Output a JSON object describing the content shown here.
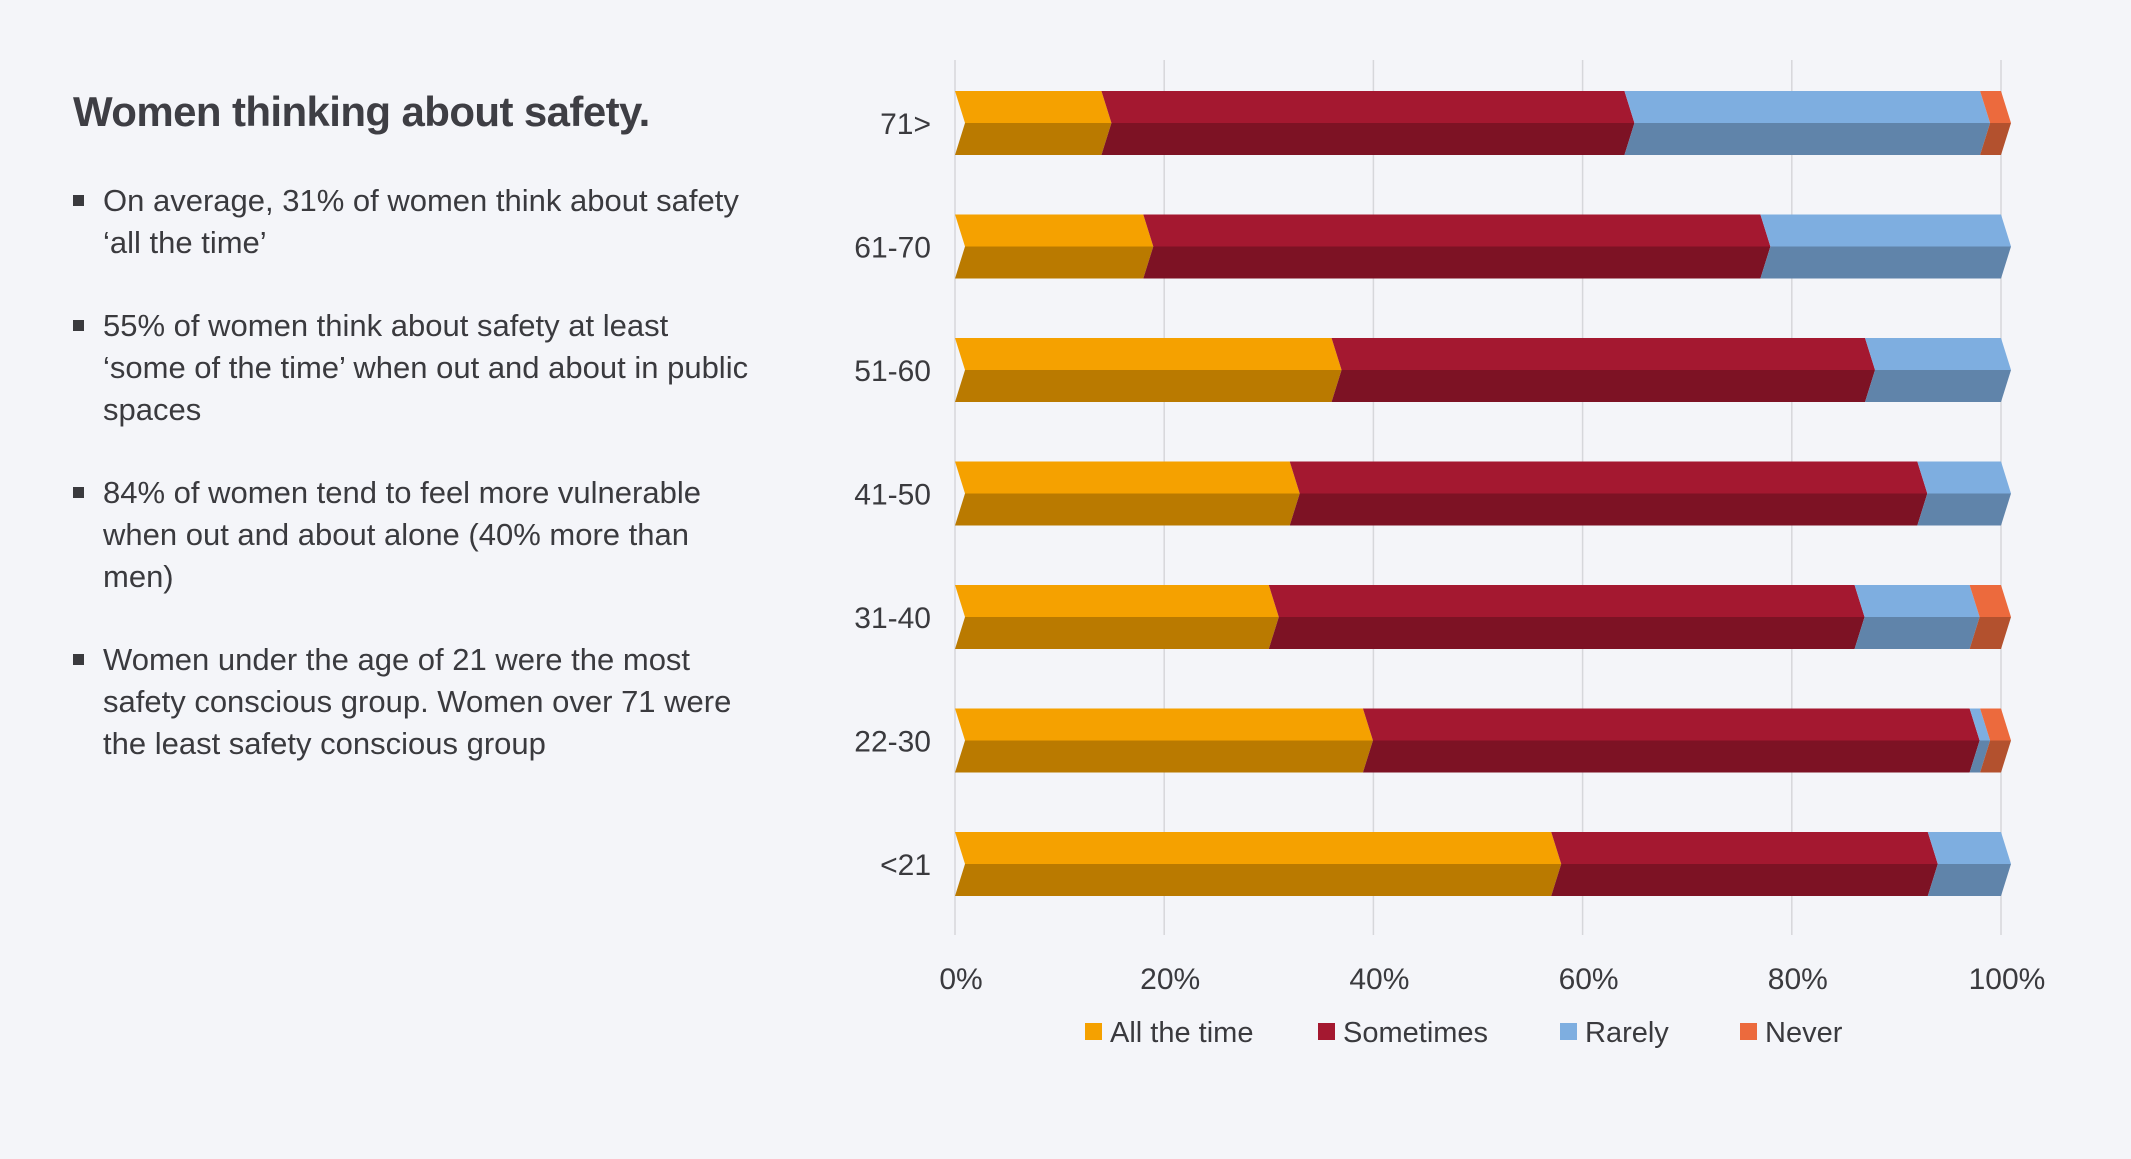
{
  "title": "Women thinking about safety.",
  "bullets": [
    "On average, 31% of women think about safety ‘all the time’",
    "55% of women think about safety at least ‘some of the time’ when out and about in public spaces",
    "84% of women tend to feel more vulnerable when out and about alone (40% more than men)",
    "Women under the age of 21 were the most safety conscious group. Women over 71 were the least safety conscious group"
  ],
  "chart_data": {
    "type": "bar",
    "orientation": "horizontal",
    "stacked": "percent",
    "style": "3d",
    "categories": [
      "71>",
      "61-70",
      "51-60",
      "41-50",
      "31-40",
      "22-30",
      "<21"
    ],
    "series": [
      {
        "name": "All the time",
        "color": "#f5a100",
        "values": [
          14,
          18,
          36,
          32,
          30,
          39,
          57
        ]
      },
      {
        "name": "Sometimes",
        "color": "#a41830",
        "values": [
          50,
          59,
          51,
          60,
          56,
          58,
          36
        ]
      },
      {
        "name": "Rarely",
        "color": "#7eaee0",
        "values": [
          34,
          23,
          13,
          8,
          11,
          1,
          7
        ]
      },
      {
        "name": "Never",
        "color": "#ec6a3d",
        "values": [
          2,
          0,
          0,
          0,
          3,
          2,
          0
        ]
      }
    ],
    "xlim": [
      0,
      100
    ],
    "xticks": [
      "0%",
      "20%",
      "40%",
      "60%",
      "80%",
      "100%"
    ],
    "grid": "vertical",
    "legend": "bottom"
  }
}
